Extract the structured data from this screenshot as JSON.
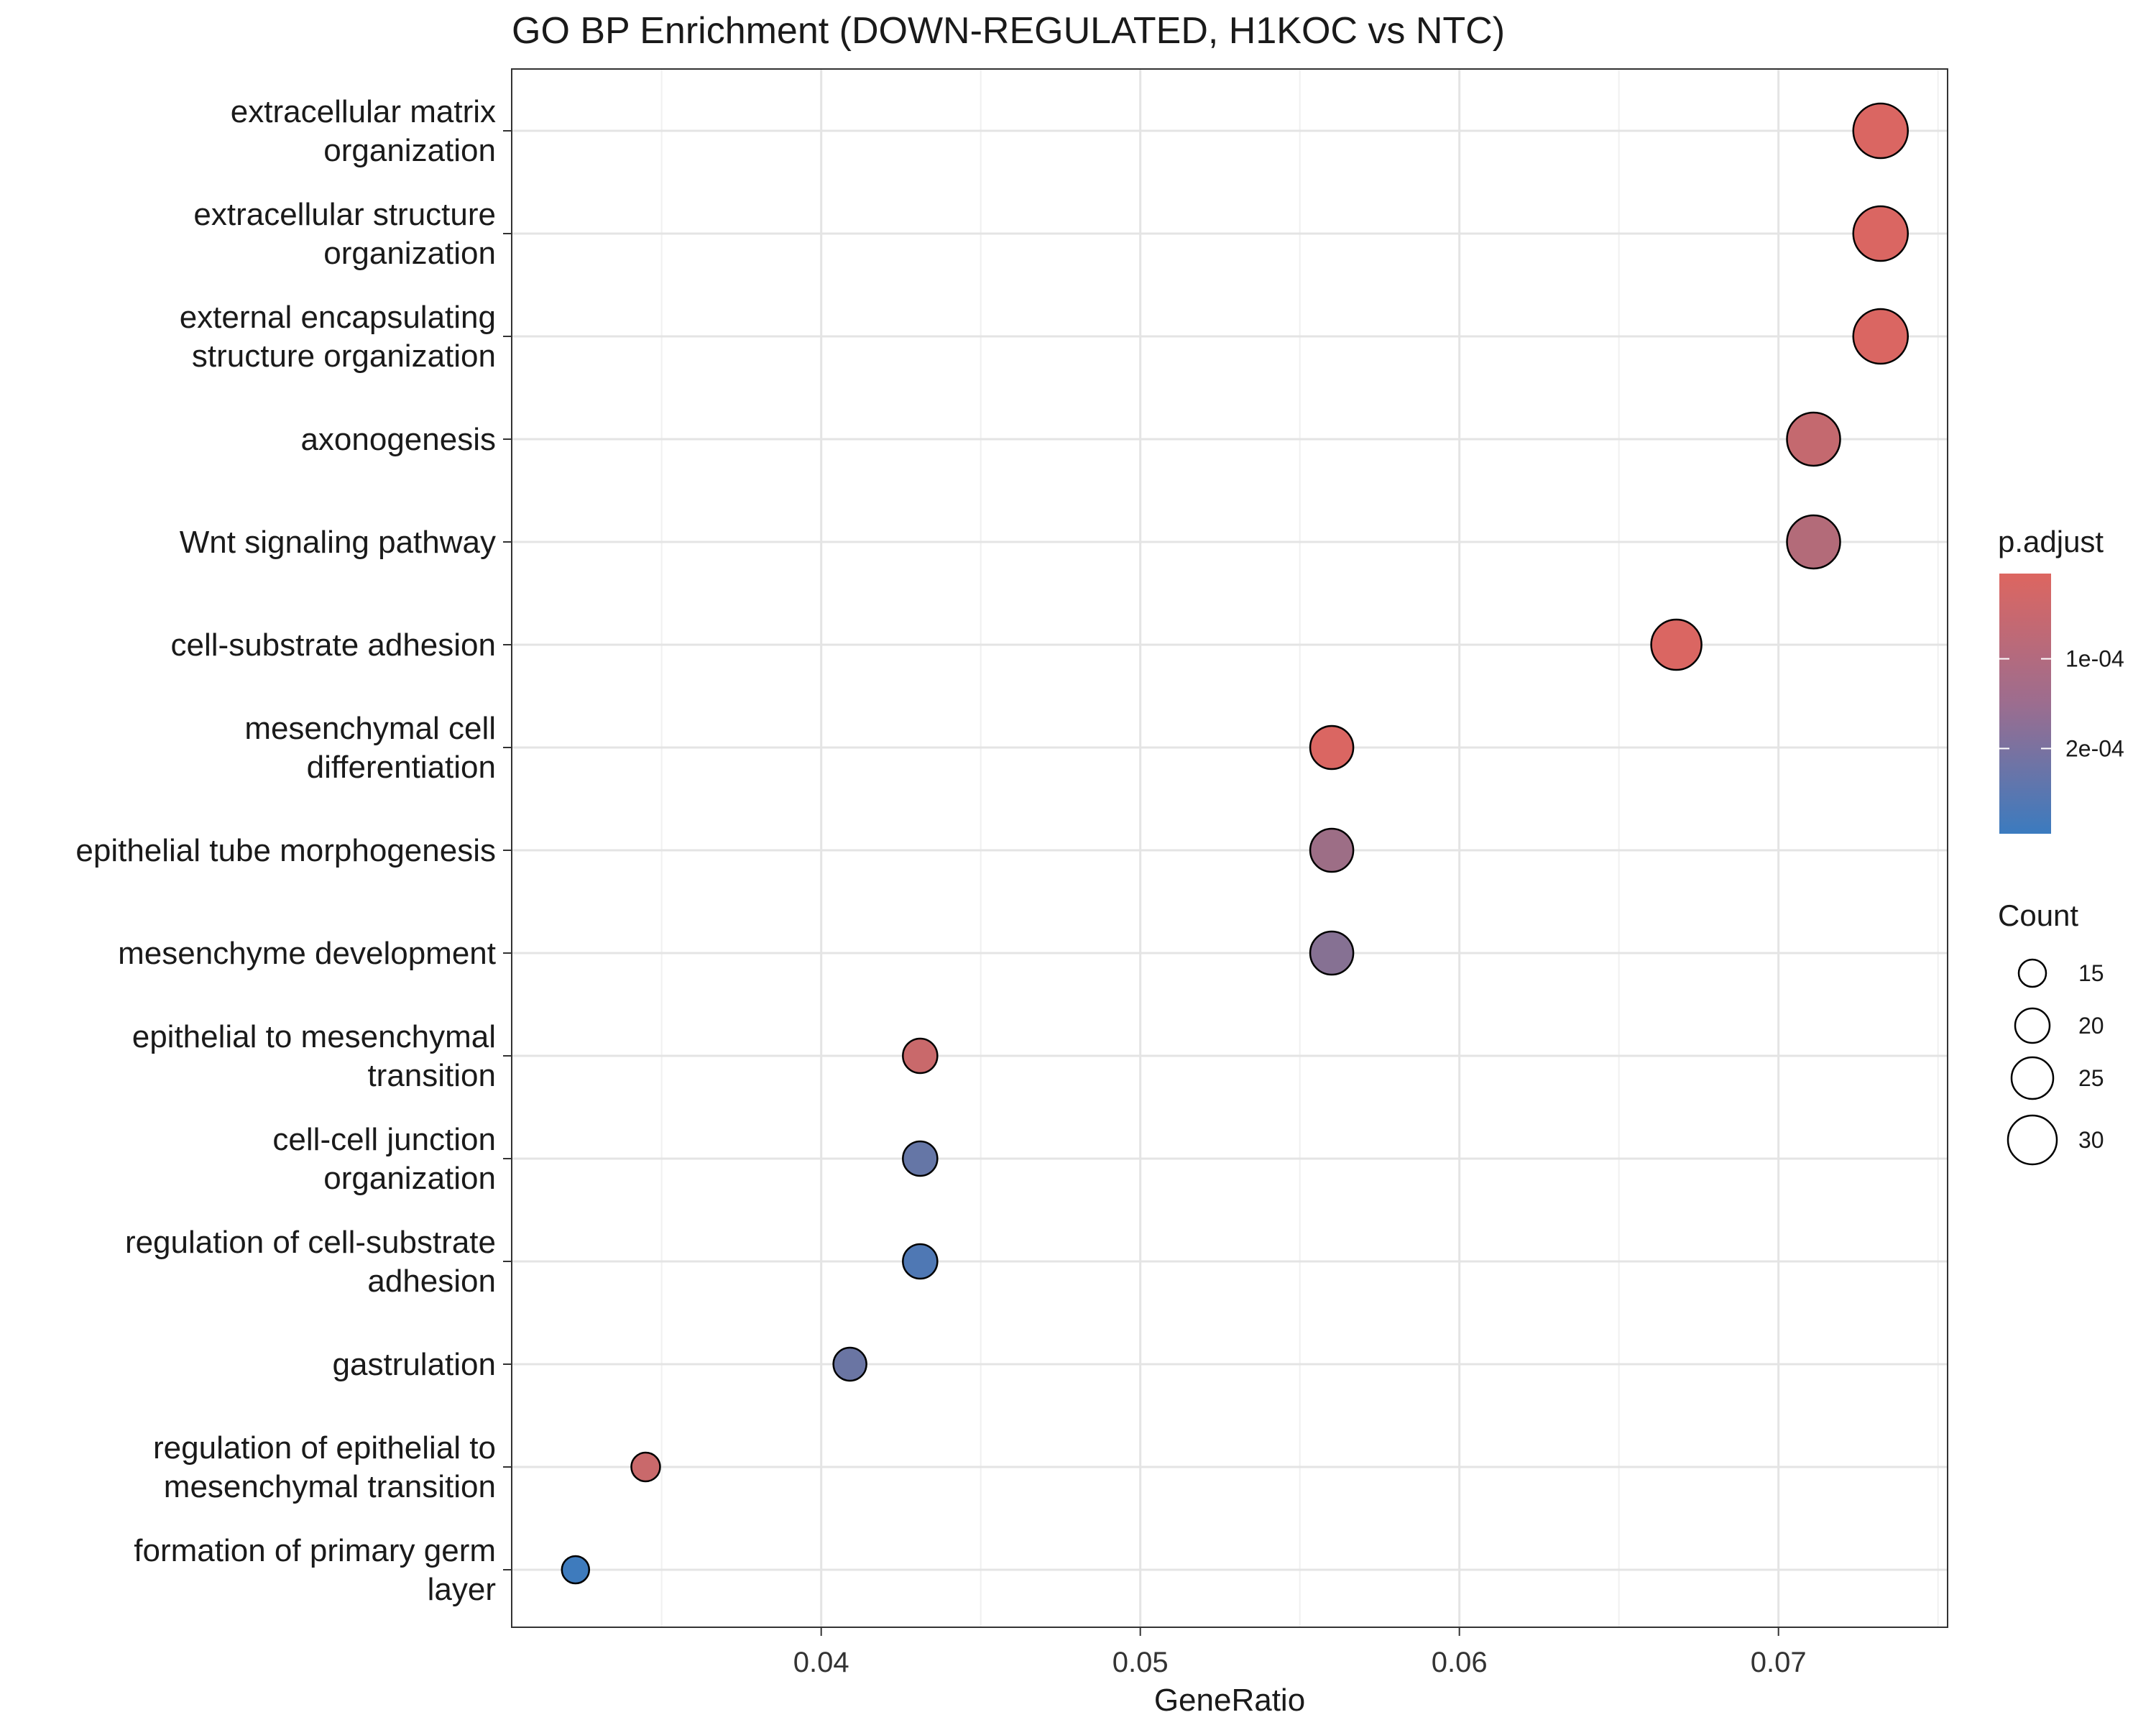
{
  "chart_data": {
    "type": "scatter",
    "title": "GO BP Enrichment (DOWN-REGULATED, H1KOC vs NTC)",
    "xlabel": "GeneRatio",
    "ylabel": "",
    "xlim": [
      0.0303,
      0.0753
    ],
    "x_ticks": [
      0.04,
      0.05,
      0.06,
      0.07
    ],
    "x_tick_labels": [
      "0.04",
      "0.05",
      "0.06",
      "0.07"
    ],
    "grid": true,
    "categories": [
      [
        "extracellular matrix",
        "organization"
      ],
      [
        "extracellular structure",
        "organization"
      ],
      [
        "external encapsulating",
        "structure organization"
      ],
      [
        "axonogenesis"
      ],
      [
        "Wnt signaling pathway"
      ],
      [
        "cell-substrate adhesion"
      ],
      [
        "mesenchymal cell",
        "differentiation"
      ],
      [
        "epithelial tube morphogenesis"
      ],
      [
        "mesenchyme development"
      ],
      [
        "epithelial to mesenchymal",
        "transition"
      ],
      [
        "cell-cell junction",
        "organization"
      ],
      [
        "regulation of cell-substrate",
        "adhesion"
      ],
      [
        "gastrulation"
      ],
      [
        "regulation of epithelial to",
        "mesenchymal transition"
      ],
      [
        "formation of primary germ",
        "layer"
      ]
    ],
    "points": [
      {
        "gene_ratio": 0.0732,
        "count": 34,
        "p_adjust": 1e-05
      },
      {
        "gene_ratio": 0.0732,
        "count": 34,
        "p_adjust": 1e-05
      },
      {
        "gene_ratio": 0.0732,
        "count": 34,
        "p_adjust": 1e-05
      },
      {
        "gene_ratio": 0.0711,
        "count": 33,
        "p_adjust": 5e-05
      },
      {
        "gene_ratio": 0.0711,
        "count": 33,
        "p_adjust": 8e-05
      },
      {
        "gene_ratio": 0.0668,
        "count": 31,
        "p_adjust": 1e-05
      },
      {
        "gene_ratio": 0.056,
        "count": 26,
        "p_adjust": 1e-05
      },
      {
        "gene_ratio": 0.056,
        "count": 26,
        "p_adjust": 0.00012
      },
      {
        "gene_ratio": 0.056,
        "count": 26,
        "p_adjust": 0.00016
      },
      {
        "gene_ratio": 0.0431,
        "count": 20,
        "p_adjust": 4e-05
      },
      {
        "gene_ratio": 0.0431,
        "count": 20,
        "p_adjust": 0.00022
      },
      {
        "gene_ratio": 0.0431,
        "count": 20,
        "p_adjust": 0.00026
      },
      {
        "gene_ratio": 0.0409,
        "count": 19,
        "p_adjust": 0.00021
      },
      {
        "gene_ratio": 0.0345,
        "count": 16,
        "p_adjust": 4e-05
      },
      {
        "gene_ratio": 0.0323,
        "count": 15,
        "p_adjust": 0.00029
      }
    ],
    "legend_color": {
      "title": "p.adjust",
      "range": [
        5e-06,
        0.000295
      ],
      "color_low": "#DD6660",
      "color_high": "#3B7BBF",
      "ticks": [
        0.0001,
        0.0002
      ],
      "tick_labels": [
        "1e-04",
        "2e-04"
      ]
    },
    "legend_size": {
      "title": "Count",
      "values": [
        15,
        20,
        25,
        30
      ],
      "labels": [
        "15",
        "20",
        "25",
        "30"
      ],
      "count_range": [
        15,
        34
      ]
    }
  }
}
